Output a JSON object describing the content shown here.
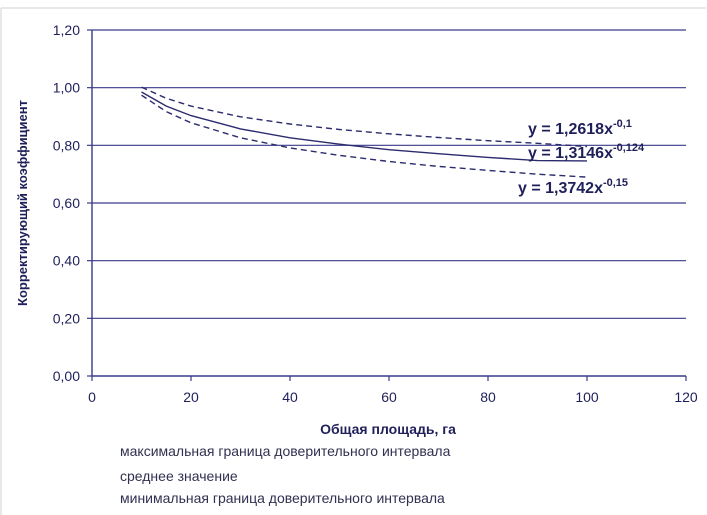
{
  "chart_data": {
    "type": "line",
    "title": "",
    "xlabel": "Общая площадь, га",
    "ylabel": "Корректирующий коэффициент",
    "xlim": [
      0,
      120
    ],
    "ylim": [
      0,
      1.2
    ],
    "x_ticks": [
      "0",
      "20",
      "40",
      "60",
      "80",
      "100",
      "120"
    ],
    "y_ticks": [
      "0,00",
      "0,20",
      "0,40",
      "0,60",
      "0,80",
      "1,00",
      "1,20"
    ],
    "grid": "horizontal",
    "legend_position": "bottom",
    "series": [
      {
        "name": "максимальная граница доверительного интервала",
        "style": "dashed",
        "equation": "y = 1,2618x",
        "exponent": "-0,1",
        "x": [
          10,
          15,
          20,
          30,
          40,
          50,
          60,
          70,
          80,
          90,
          100
        ],
        "y": [
          1.002,
          0.963,
          0.936,
          0.899,
          0.874,
          0.855,
          0.84,
          0.827,
          0.816,
          0.807,
          0.796
        ]
      },
      {
        "name": "среднее значение",
        "style": "solid",
        "equation": "y = 1,3146x",
        "exponent": "-0,124",
        "x": [
          10,
          15,
          20,
          30,
          40,
          50,
          60,
          70,
          80,
          90,
          100
        ],
        "y": [
          0.985,
          0.936,
          0.903,
          0.857,
          0.826,
          0.804,
          0.785,
          0.771,
          0.758,
          0.747,
          0.746
        ]
      },
      {
        "name": "минимальная граница доверительного интервала",
        "style": "dashed",
        "equation": "y = 1,3742x",
        "exponent": "-0,15",
        "x": [
          10,
          15,
          20,
          30,
          40,
          50,
          60,
          70,
          80,
          90,
          100
        ],
        "y": [
          0.974,
          0.917,
          0.878,
          0.826,
          0.791,
          0.765,
          0.744,
          0.727,
          0.713,
          0.7,
          0.69
        ]
      }
    ],
    "colors": {
      "series": "#2b2b6e",
      "grid": "#3a3a8a",
      "axis_text": "#1f1f5a"
    }
  }
}
